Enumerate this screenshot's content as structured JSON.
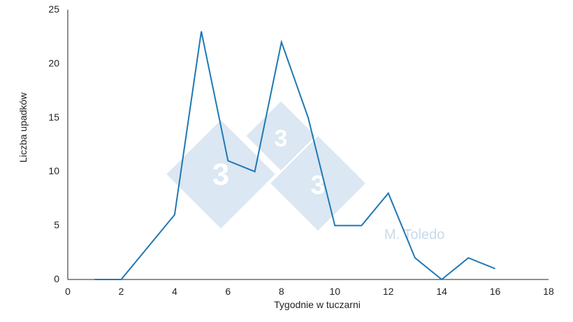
{
  "chart_data": {
    "type": "line",
    "xlabel": "Tygodnie w tuczarni",
    "ylabel": "Liczba upadków",
    "xlim": [
      0,
      18
    ],
    "ylim": [
      0,
      25
    ],
    "xticks": [
      0,
      2,
      4,
      6,
      8,
      10,
      12,
      14,
      16,
      18
    ],
    "yticks": [
      0,
      5,
      10,
      15,
      20,
      25
    ],
    "grid": false,
    "series": [
      {
        "x": [
          1,
          2,
          4,
          5,
          6,
          7,
          8,
          9,
          10,
          11,
          12,
          13,
          14,
          15,
          16
        ],
        "y": [
          0,
          0,
          6,
          23,
          11,
          10,
          22,
          15,
          5,
          5,
          8,
          2,
          0,
          2,
          1
        ],
        "color": "#1f78b4"
      }
    ]
  },
  "watermark": {
    "text": "M. Toledo",
    "digit": "3",
    "color": "#c8dbea"
  }
}
